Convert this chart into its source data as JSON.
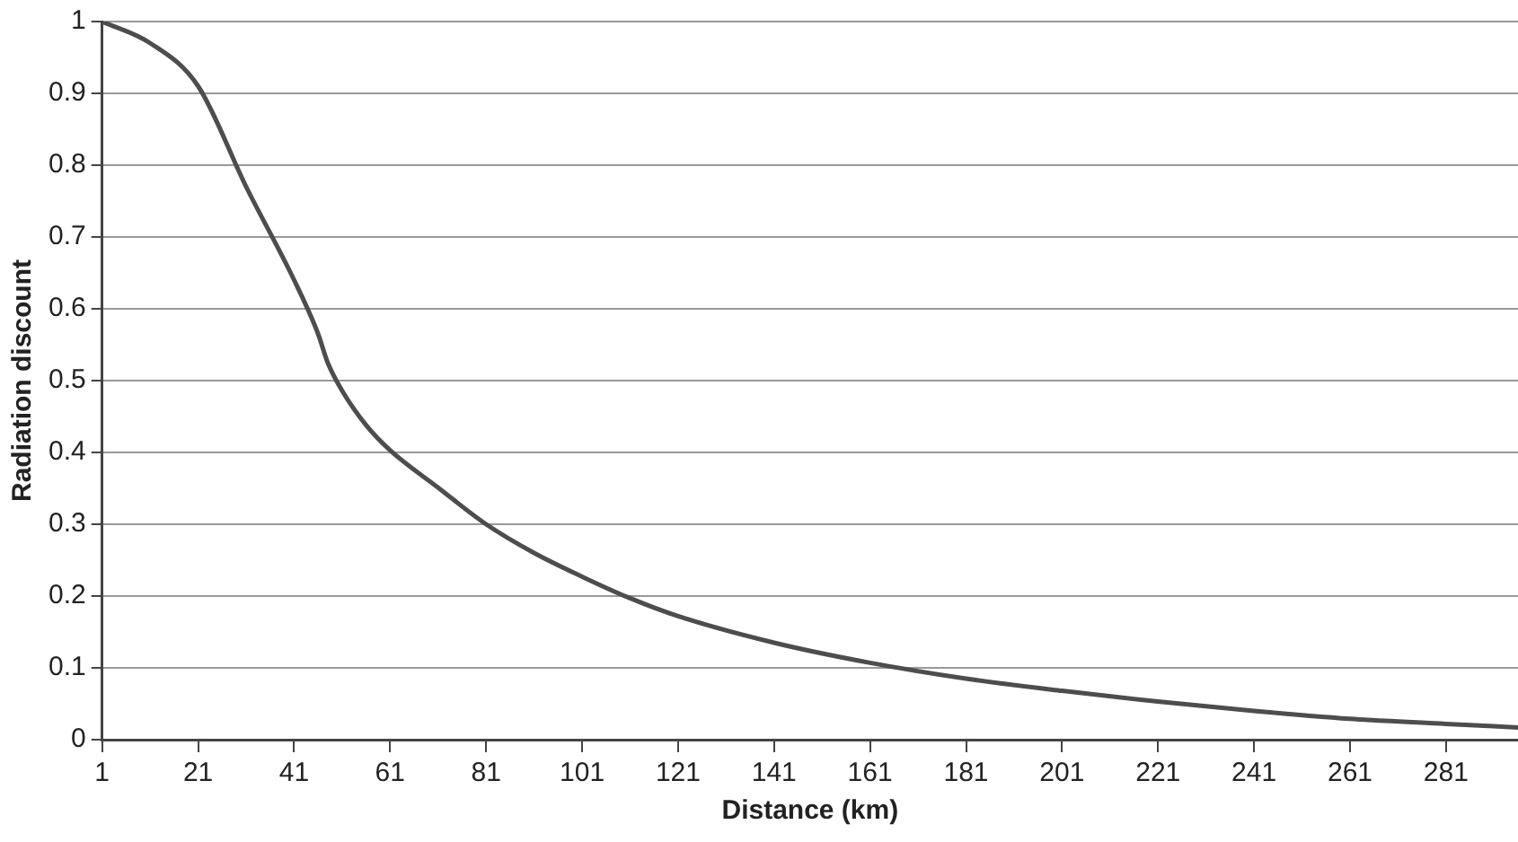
{
  "chart_data": {
    "type": "line",
    "xlabel": "Distance (km)",
    "ylabel": "Radiation discount",
    "x": [
      1,
      11,
      21,
      31,
      41,
      46,
      48,
      51,
      56,
      61,
      71,
      81,
      91,
      101,
      111,
      121,
      141,
      161,
      181,
      201,
      221,
      241,
      261,
      281,
      296
    ],
    "series": [
      {
        "color": "#4d4d4d",
        "values": [
          1.0,
          0.97,
          0.91,
          0.77,
          0.64,
          0.565,
          0.525,
          0.486,
          0.438,
          0.403,
          0.351,
          0.3,
          0.26,
          0.227,
          0.197,
          0.172,
          0.135,
          0.107,
          0.085,
          0.068,
          0.053,
          0.04,
          0.029,
          0.022,
          0.017
        ]
      }
    ],
    "xlim": [
      1,
      296
    ],
    "xticks": [
      1,
      21,
      41,
      61,
      81,
      101,
      121,
      141,
      161,
      181,
      201,
      221,
      241,
      261,
      281
    ],
    "ylim": [
      0,
      1
    ],
    "yticks": [
      0,
      0.1,
      0.2,
      0.3,
      0.4,
      0.5,
      0.6,
      0.7,
      0.8,
      0.9,
      1
    ],
    "grid": "y",
    "legend": false,
    "marker": "none",
    "line_style": "solid"
  }
}
